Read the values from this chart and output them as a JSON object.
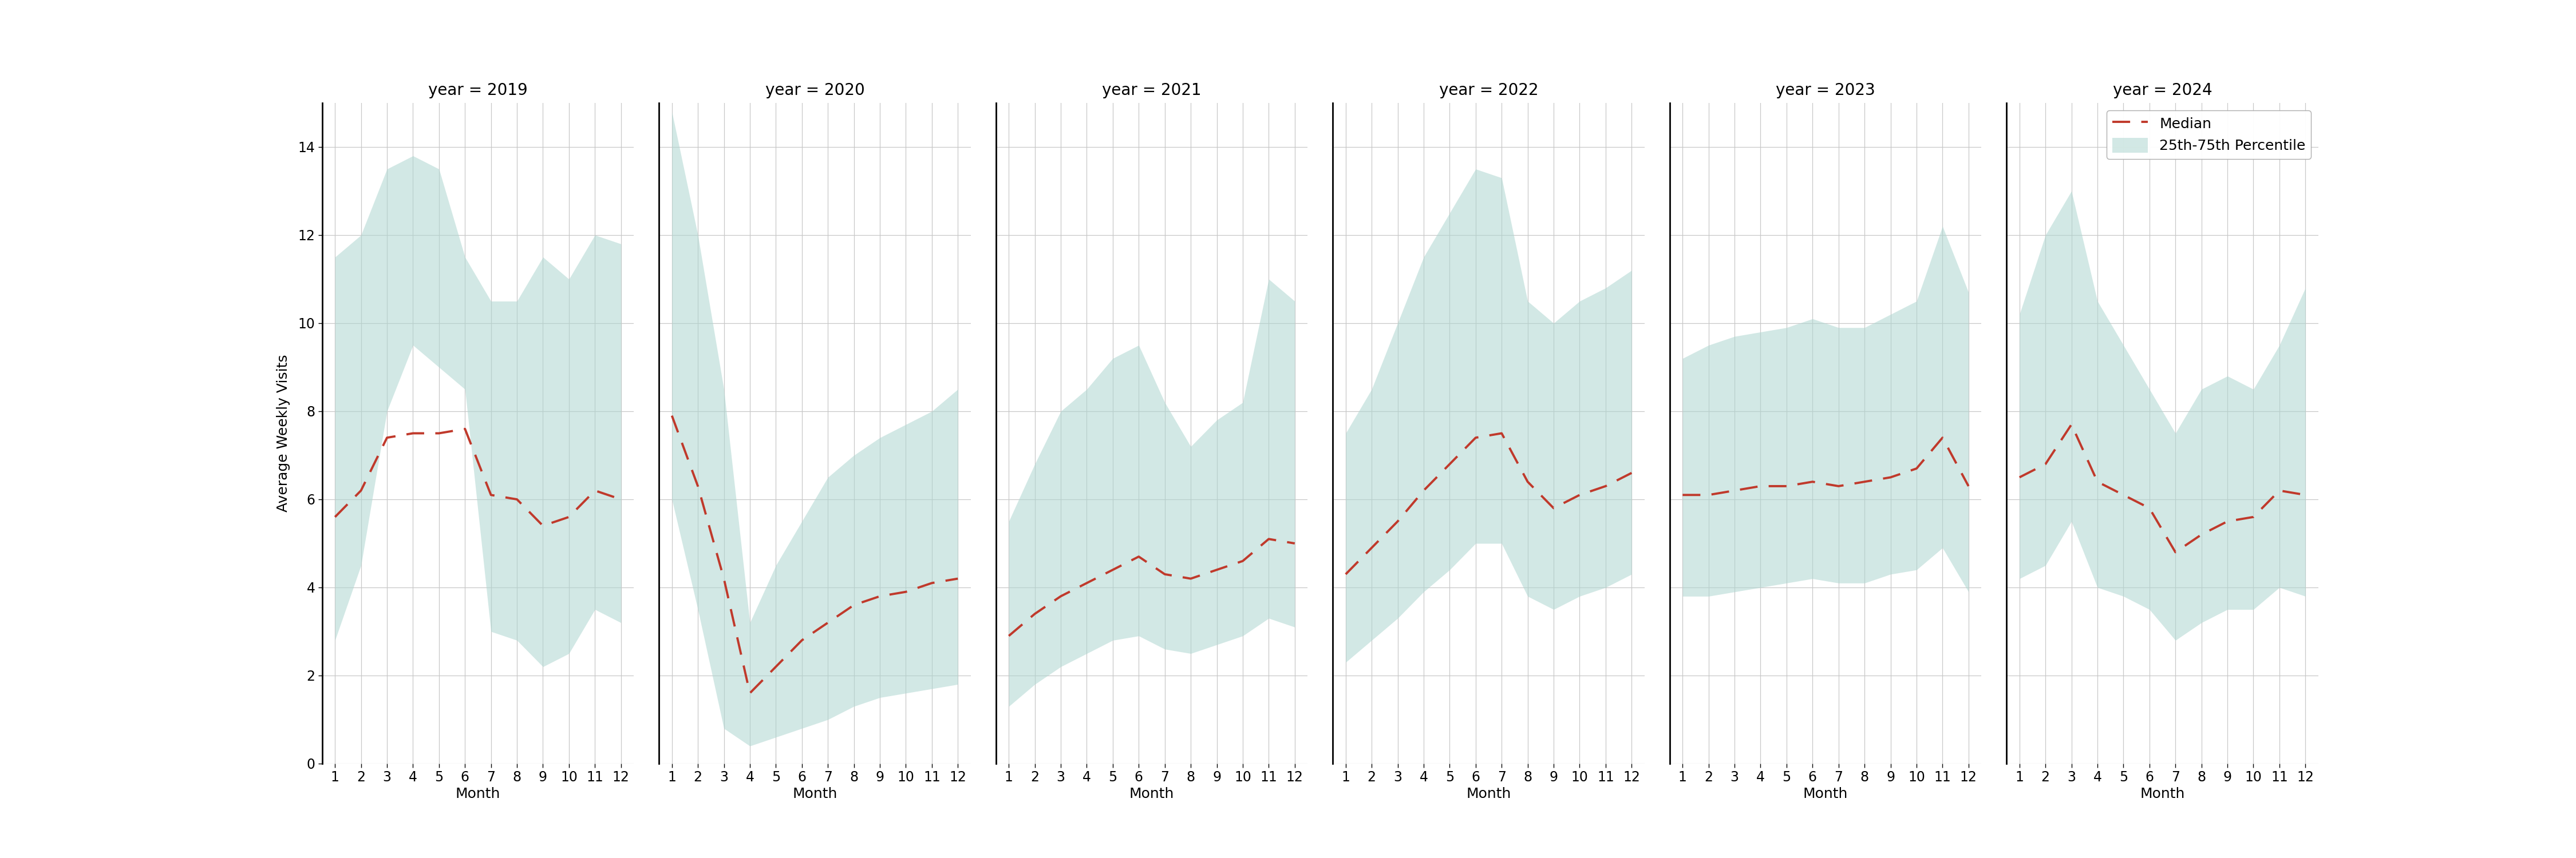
{
  "years": [
    2019,
    2020,
    2021,
    2022,
    2023,
    2024
  ],
  "months": [
    1,
    2,
    3,
    4,
    5,
    6,
    7,
    8,
    9,
    10,
    11,
    12
  ],
  "median": {
    "2019": [
      5.6,
      6.2,
      7.4,
      7.5,
      7.5,
      7.6,
      6.1,
      6.0,
      5.4,
      5.6,
      6.2,
      6.0
    ],
    "2020": [
      7.9,
      6.3,
      4.2,
      1.6,
      2.2,
      2.8,
      3.2,
      3.6,
      3.8,
      3.9,
      4.1,
      4.2
    ],
    "2021": [
      2.9,
      3.4,
      3.8,
      4.1,
      4.4,
      4.7,
      4.3,
      4.2,
      4.4,
      4.6,
      5.1,
      5.0
    ],
    "2022": [
      4.3,
      4.9,
      5.5,
      6.2,
      6.8,
      7.4,
      7.5,
      6.4,
      5.8,
      6.1,
      6.3,
      6.6
    ],
    "2023": [
      6.1,
      6.1,
      6.2,
      6.3,
      6.3,
      6.4,
      6.3,
      6.4,
      6.5,
      6.7,
      7.4,
      6.3
    ],
    "2024": [
      6.5,
      6.8,
      7.7,
      6.4,
      6.1,
      5.8,
      4.8,
      5.2,
      5.5,
      5.6,
      6.2,
      6.1
    ]
  },
  "p25": {
    "2019": [
      2.8,
      4.5,
      8.0,
      9.5,
      9.0,
      8.5,
      3.0,
      2.8,
      2.2,
      2.5,
      3.5,
      3.2
    ],
    "2020": [
      6.0,
      3.5,
      0.8,
      0.4,
      0.6,
      0.8,
      1.0,
      1.3,
      1.5,
      1.6,
      1.7,
      1.8
    ],
    "2021": [
      1.3,
      1.8,
      2.2,
      2.5,
      2.8,
      2.9,
      2.6,
      2.5,
      2.7,
      2.9,
      3.3,
      3.1
    ],
    "2022": [
      2.3,
      2.8,
      3.3,
      3.9,
      4.4,
      5.0,
      5.0,
      3.8,
      3.5,
      3.8,
      4.0,
      4.3
    ],
    "2023": [
      3.8,
      3.8,
      3.9,
      4.0,
      4.1,
      4.2,
      4.1,
      4.1,
      4.3,
      4.4,
      4.9,
      3.9
    ],
    "2024": [
      4.2,
      4.5,
      5.5,
      4.0,
      3.8,
      3.5,
      2.8,
      3.2,
      3.5,
      3.5,
      4.0,
      3.8
    ]
  },
  "p75": {
    "2019": [
      11.5,
      12.0,
      13.5,
      13.8,
      13.5,
      11.5,
      10.5,
      10.5,
      11.5,
      11.0,
      12.0,
      11.8
    ],
    "2020": [
      14.8,
      12.0,
      8.5,
      3.2,
      4.5,
      5.5,
      6.5,
      7.0,
      7.4,
      7.7,
      8.0,
      8.5
    ],
    "2021": [
      5.5,
      6.8,
      8.0,
      8.5,
      9.2,
      9.5,
      8.2,
      7.2,
      7.8,
      8.2,
      11.0,
      10.5
    ],
    "2022": [
      7.5,
      8.5,
      10.0,
      11.5,
      12.5,
      13.5,
      13.3,
      10.5,
      10.0,
      10.5,
      10.8,
      11.2
    ],
    "2023": [
      9.2,
      9.5,
      9.7,
      9.8,
      9.9,
      10.1,
      9.9,
      9.9,
      10.2,
      10.5,
      12.2,
      10.7
    ],
    "2024": [
      10.2,
      12.0,
      13.0,
      10.5,
      9.5,
      8.5,
      7.5,
      8.5,
      8.8,
      8.5,
      9.5,
      10.8
    ]
  },
  "ylim": [
    0,
    15
  ],
  "yticks": [
    0,
    2,
    4,
    6,
    8,
    10,
    12,
    14
  ],
  "ylabel": "Average Weekly Visits",
  "xlabel": "Month",
  "fill_color": "#aed6d0",
  "fill_alpha": 0.55,
  "line_color": "#c0392b",
  "bg_color": "#ffffff",
  "grid_color": "#c8c8c8",
  "title_fontsize": 20,
  "label_fontsize": 18,
  "tick_fontsize": 17,
  "legend_fontsize": 18
}
